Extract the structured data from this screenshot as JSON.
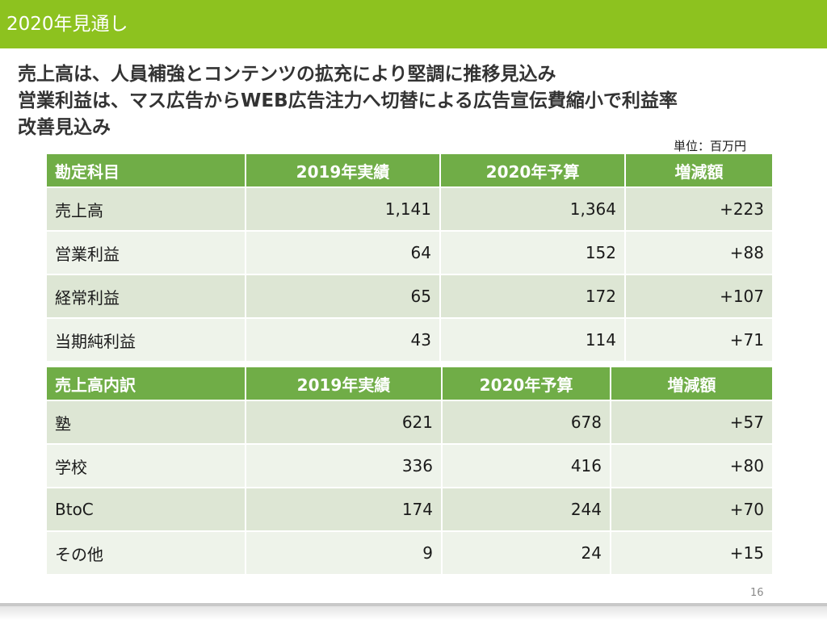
{
  "header": {
    "title": "2020年見通し"
  },
  "headline": {
    "lines": [
      "売上高は、人員補強とコンテンツの拡充により堅調に推移見込み",
      "営業利益は、マス広告からWEB広告注力へ切替による広告宣伝費縮小で利益率",
      "改善見込み"
    ]
  },
  "unit_label": "単位：百万円",
  "pl_table": {
    "headers": [
      "勘定科目",
      "2019年実績",
      "2020年予算",
      "増減額"
    ],
    "rows": [
      [
        "売上高",
        "1,141",
        "1,364",
        "+223"
      ],
      [
        "営業利益",
        "64",
        "152",
        "+88"
      ],
      [
        "経常利益",
        "65",
        "172",
        "+107"
      ],
      [
        "当期純利益",
        "43",
        "114",
        "+71"
      ]
    ]
  },
  "sales_table": {
    "headers": [
      "売上高内訳",
      "2019年実績",
      "2020年予算",
      "増減額"
    ],
    "rows": [
      [
        "塾",
        "621",
        "678",
        "+57"
      ],
      [
        "学校",
        "336",
        "416",
        "+80"
      ],
      [
        "BtoC",
        "174",
        "244",
        "+70"
      ],
      [
        "その他",
        "9",
        "24",
        "+15"
      ]
    ]
  },
  "page_number": "16",
  "colors": {
    "header_bar": "#8dc21f",
    "table_header": "#70ad47",
    "row_odd": "#dde6d4",
    "row_even": "#eef3ea"
  }
}
